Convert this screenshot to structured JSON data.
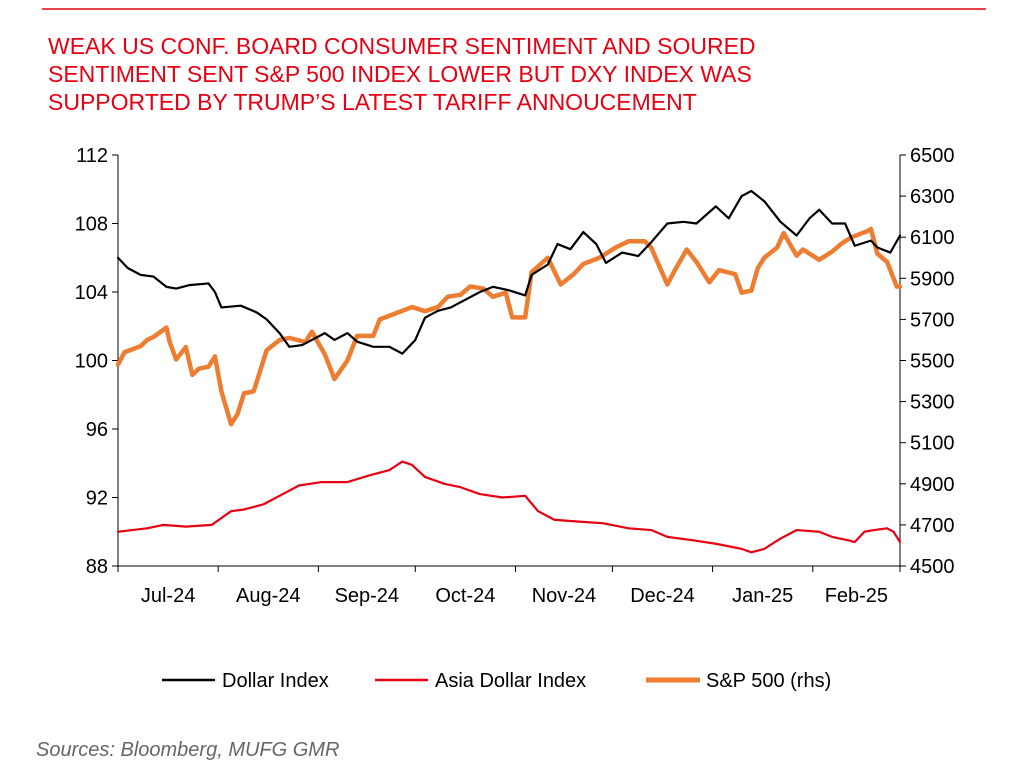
{
  "title_lines": [
    "WEAK US CONF. BOARD CONSUMER SENTIMENT AND SOURED",
    "SENTIMENT SENT S&P 500 INDEX LOWER BUT DXY INDEX WAS",
    "SUPPORTED BY TRUMP’S LATEST TARIFF ANNOUCEMENT"
  ],
  "source_text": "Sources:  Bloomberg, MUFG GMR",
  "colors": {
    "title": "#e60012",
    "rule": "#e60012",
    "dollar_index": "#000000",
    "asia_dollar_index": "#e60012",
    "sp500": "#ed7d31",
    "axis": "#000000"
  },
  "chart_data": {
    "type": "line",
    "x_type": "time",
    "x_labels": [
      "Jul-24",
      "Aug-24",
      "Sep-24",
      "Oct-24",
      "Nov-24",
      "Dec-24",
      "Jan-25",
      "Feb-25"
    ],
    "x_range": [
      "2024-07-01",
      "2025-02-28"
    ],
    "y_left": {
      "range": [
        88,
        112
      ],
      "ticks": [
        88,
        92,
        96,
        100,
        104,
        108,
        112
      ]
    },
    "y_right": {
      "range": [
        4500,
        6500
      ],
      "ticks": [
        4500,
        4700,
        4900,
        5100,
        5300,
        5500,
        5700,
        5900,
        6100,
        6300,
        6500
      ]
    },
    "grid": false,
    "legend_position": "bottom",
    "series": [
      {
        "name": "Dollar Index",
        "axis": "left",
        "color": "#000000",
        "points": [
          [
            "2024-07-01",
            106.0
          ],
          [
            "2024-07-04",
            105.4
          ],
          [
            "2024-07-08",
            105.0
          ],
          [
            "2024-07-12",
            104.9
          ],
          [
            "2024-07-16",
            104.3
          ],
          [
            "2024-07-19",
            104.2
          ],
          [
            "2024-07-23",
            104.4
          ],
          [
            "2024-07-29",
            104.5
          ],
          [
            "2024-07-31",
            104.0
          ],
          [
            "2024-08-02",
            103.1
          ],
          [
            "2024-08-08",
            103.2
          ],
          [
            "2024-08-13",
            102.8
          ],
          [
            "2024-08-16",
            102.4
          ],
          [
            "2024-08-20",
            101.6
          ],
          [
            "2024-08-23",
            100.8
          ],
          [
            "2024-08-27",
            100.9
          ],
          [
            "2024-09-03",
            101.6
          ],
          [
            "2024-09-06",
            101.2
          ],
          [
            "2024-09-10",
            101.6
          ],
          [
            "2024-09-13",
            101.1
          ],
          [
            "2024-09-18",
            100.8
          ],
          [
            "2024-09-23",
            100.8
          ],
          [
            "2024-09-27",
            100.4
          ],
          [
            "2024-10-01",
            101.2
          ],
          [
            "2024-10-04",
            102.5
          ],
          [
            "2024-10-08",
            102.9
          ],
          [
            "2024-10-12",
            103.1
          ],
          [
            "2024-10-16",
            103.5
          ],
          [
            "2024-10-21",
            104.0
          ],
          [
            "2024-10-25",
            104.3
          ],
          [
            "2024-10-30",
            104.1
          ],
          [
            "2024-11-04",
            103.8
          ],
          [
            "2024-11-06",
            105.0
          ],
          [
            "2024-11-11",
            105.6
          ],
          [
            "2024-11-14",
            106.8
          ],
          [
            "2024-11-18",
            106.5
          ],
          [
            "2024-11-22",
            107.5
          ],
          [
            "2024-11-26",
            106.8
          ],
          [
            "2024-11-29",
            105.7
          ],
          [
            "2024-12-04",
            106.3
          ],
          [
            "2024-12-09",
            106.1
          ],
          [
            "2024-12-13",
            106.9
          ],
          [
            "2024-12-18",
            108.0
          ],
          [
            "2024-12-23",
            108.1
          ],
          [
            "2024-12-27",
            108.0
          ],
          [
            "2025-01-02",
            109.0
          ],
          [
            "2025-01-06",
            108.3
          ],
          [
            "2025-01-10",
            109.6
          ],
          [
            "2025-01-13",
            109.9
          ],
          [
            "2025-01-17",
            109.3
          ],
          [
            "2025-01-22",
            108.1
          ],
          [
            "2025-01-27",
            107.3
          ],
          [
            "2025-01-31",
            108.3
          ],
          [
            "2025-02-03",
            108.8
          ],
          [
            "2025-02-07",
            108.0
          ],
          [
            "2025-02-11",
            108.0
          ],
          [
            "2025-02-14",
            106.7
          ],
          [
            "2025-02-19",
            107.0
          ],
          [
            "2025-02-21",
            106.6
          ],
          [
            "2025-02-25",
            106.3
          ],
          [
            "2025-02-28",
            107.3
          ]
        ]
      },
      {
        "name": "Asia Dollar Index",
        "axis": "left",
        "color": "#e60012",
        "points": [
          [
            "2024-07-01",
            90.0
          ],
          [
            "2024-07-10",
            90.2
          ],
          [
            "2024-07-15",
            90.4
          ],
          [
            "2024-07-22",
            90.3
          ],
          [
            "2024-07-30",
            90.4
          ],
          [
            "2024-08-05",
            91.2
          ],
          [
            "2024-08-09",
            91.3
          ],
          [
            "2024-08-15",
            91.6
          ],
          [
            "2024-08-21",
            92.2
          ],
          [
            "2024-08-26",
            92.7
          ],
          [
            "2024-09-02",
            92.9
          ],
          [
            "2024-09-10",
            92.9
          ],
          [
            "2024-09-17",
            93.3
          ],
          [
            "2024-09-23",
            93.6
          ],
          [
            "2024-09-27",
            94.1
          ],
          [
            "2024-09-30",
            93.9
          ],
          [
            "2024-10-04",
            93.2
          ],
          [
            "2024-10-10",
            92.8
          ],
          [
            "2024-10-15",
            92.6
          ],
          [
            "2024-10-21",
            92.2
          ],
          [
            "2024-10-28",
            92.0
          ],
          [
            "2024-11-04",
            92.1
          ],
          [
            "2024-11-08",
            91.2
          ],
          [
            "2024-11-13",
            90.7
          ],
          [
            "2024-11-20",
            90.6
          ],
          [
            "2024-11-28",
            90.5
          ],
          [
            "2024-12-06",
            90.2
          ],
          [
            "2024-12-13",
            90.1
          ],
          [
            "2024-12-18",
            89.7
          ],
          [
            "2024-12-26",
            89.5
          ],
          [
            "2025-01-02",
            89.3
          ],
          [
            "2025-01-10",
            89.0
          ],
          [
            "2025-01-13",
            88.8
          ],
          [
            "2025-01-17",
            89.0
          ],
          [
            "2025-01-22",
            89.6
          ],
          [
            "2025-01-27",
            90.1
          ],
          [
            "2025-02-03",
            90.0
          ],
          [
            "2025-02-07",
            89.7
          ],
          [
            "2025-02-12",
            89.5
          ],
          [
            "2025-02-14",
            89.4
          ],
          [
            "2025-02-17",
            90.0
          ],
          [
            "2025-02-20",
            90.1
          ],
          [
            "2025-02-24",
            90.2
          ],
          [
            "2025-02-26",
            90.0
          ],
          [
            "2025-02-28",
            89.4
          ]
        ]
      },
      {
        "name": "S&P 500 (rhs)",
        "axis": "right",
        "color": "#ed7d31",
        "points": [
          [
            "2024-07-01",
            5480
          ],
          [
            "2024-07-03",
            5540
          ],
          [
            "2024-07-08",
            5570
          ],
          [
            "2024-07-10",
            5600
          ],
          [
            "2024-07-12",
            5615
          ],
          [
            "2024-07-16",
            5660
          ],
          [
            "2024-07-17",
            5590
          ],
          [
            "2024-07-19",
            5505
          ],
          [
            "2024-07-22",
            5565
          ],
          [
            "2024-07-24",
            5430
          ],
          [
            "2024-07-26",
            5460
          ],
          [
            "2024-07-29",
            5470
          ],
          [
            "2024-07-31",
            5520
          ],
          [
            "2024-08-02",
            5350
          ],
          [
            "2024-08-05",
            5190
          ],
          [
            "2024-08-07",
            5240
          ],
          [
            "2024-08-09",
            5340
          ],
          [
            "2024-08-12",
            5350
          ],
          [
            "2024-08-14",
            5450
          ],
          [
            "2024-08-16",
            5550
          ],
          [
            "2024-08-20",
            5600
          ],
          [
            "2024-08-23",
            5610
          ],
          [
            "2024-08-28",
            5590
          ],
          [
            "2024-08-30",
            5640
          ],
          [
            "2024-09-03",
            5530
          ],
          [
            "2024-09-06",
            5410
          ],
          [
            "2024-09-10",
            5500
          ],
          [
            "2024-09-13",
            5620
          ],
          [
            "2024-09-18",
            5620
          ],
          [
            "2024-09-20",
            5700
          ],
          [
            "2024-09-25",
            5730
          ],
          [
            "2024-09-30",
            5760
          ],
          [
            "2024-10-04",
            5740
          ],
          [
            "2024-10-08",
            5760
          ],
          [
            "2024-10-11",
            5810
          ],
          [
            "2024-10-15",
            5820
          ],
          [
            "2024-10-18",
            5860
          ],
          [
            "2024-10-22",
            5850
          ],
          [
            "2024-10-25",
            5810
          ],
          [
            "2024-10-29",
            5830
          ],
          [
            "2024-10-31",
            5710
          ],
          [
            "2024-11-04",
            5710
          ],
          [
            "2024-11-06",
            5930
          ],
          [
            "2024-11-11",
            6000
          ],
          [
            "2024-11-15",
            5870
          ],
          [
            "2024-11-19",
            5920
          ],
          [
            "2024-11-22",
            5970
          ],
          [
            "2024-11-27",
            6000
          ],
          [
            "2024-12-02",
            6050
          ],
          [
            "2024-12-06",
            6080
          ],
          [
            "2024-12-11",
            6080
          ],
          [
            "2024-12-13",
            6050
          ],
          [
            "2024-12-18",
            5870
          ],
          [
            "2024-12-20",
            5930
          ],
          [
            "2024-12-24",
            6040
          ],
          [
            "2024-12-27",
            5980
          ],
          [
            "2024-12-31",
            5880
          ],
          [
            "2025-01-03",
            5940
          ],
          [
            "2025-01-08",
            5920
          ],
          [
            "2025-01-10",
            5830
          ],
          [
            "2025-01-13",
            5840
          ],
          [
            "2025-01-15",
            5950
          ],
          [
            "2025-01-17",
            6000
          ],
          [
            "2025-01-21",
            6050
          ],
          [
            "2025-01-23",
            6120
          ],
          [
            "2025-01-27",
            6010
          ],
          [
            "2025-01-29",
            6040
          ],
          [
            "2025-02-03",
            5990
          ],
          [
            "2025-02-07",
            6030
          ],
          [
            "2025-02-10",
            6070
          ],
          [
            "2025-02-13",
            6100
          ],
          [
            "2025-02-18",
            6130
          ],
          [
            "2025-02-19",
            6140
          ],
          [
            "2025-02-21",
            6020
          ],
          [
            "2025-02-24",
            5980
          ],
          [
            "2025-02-27",
            5860
          ],
          [
            "2025-02-28",
            5860
          ]
        ]
      }
    ]
  }
}
